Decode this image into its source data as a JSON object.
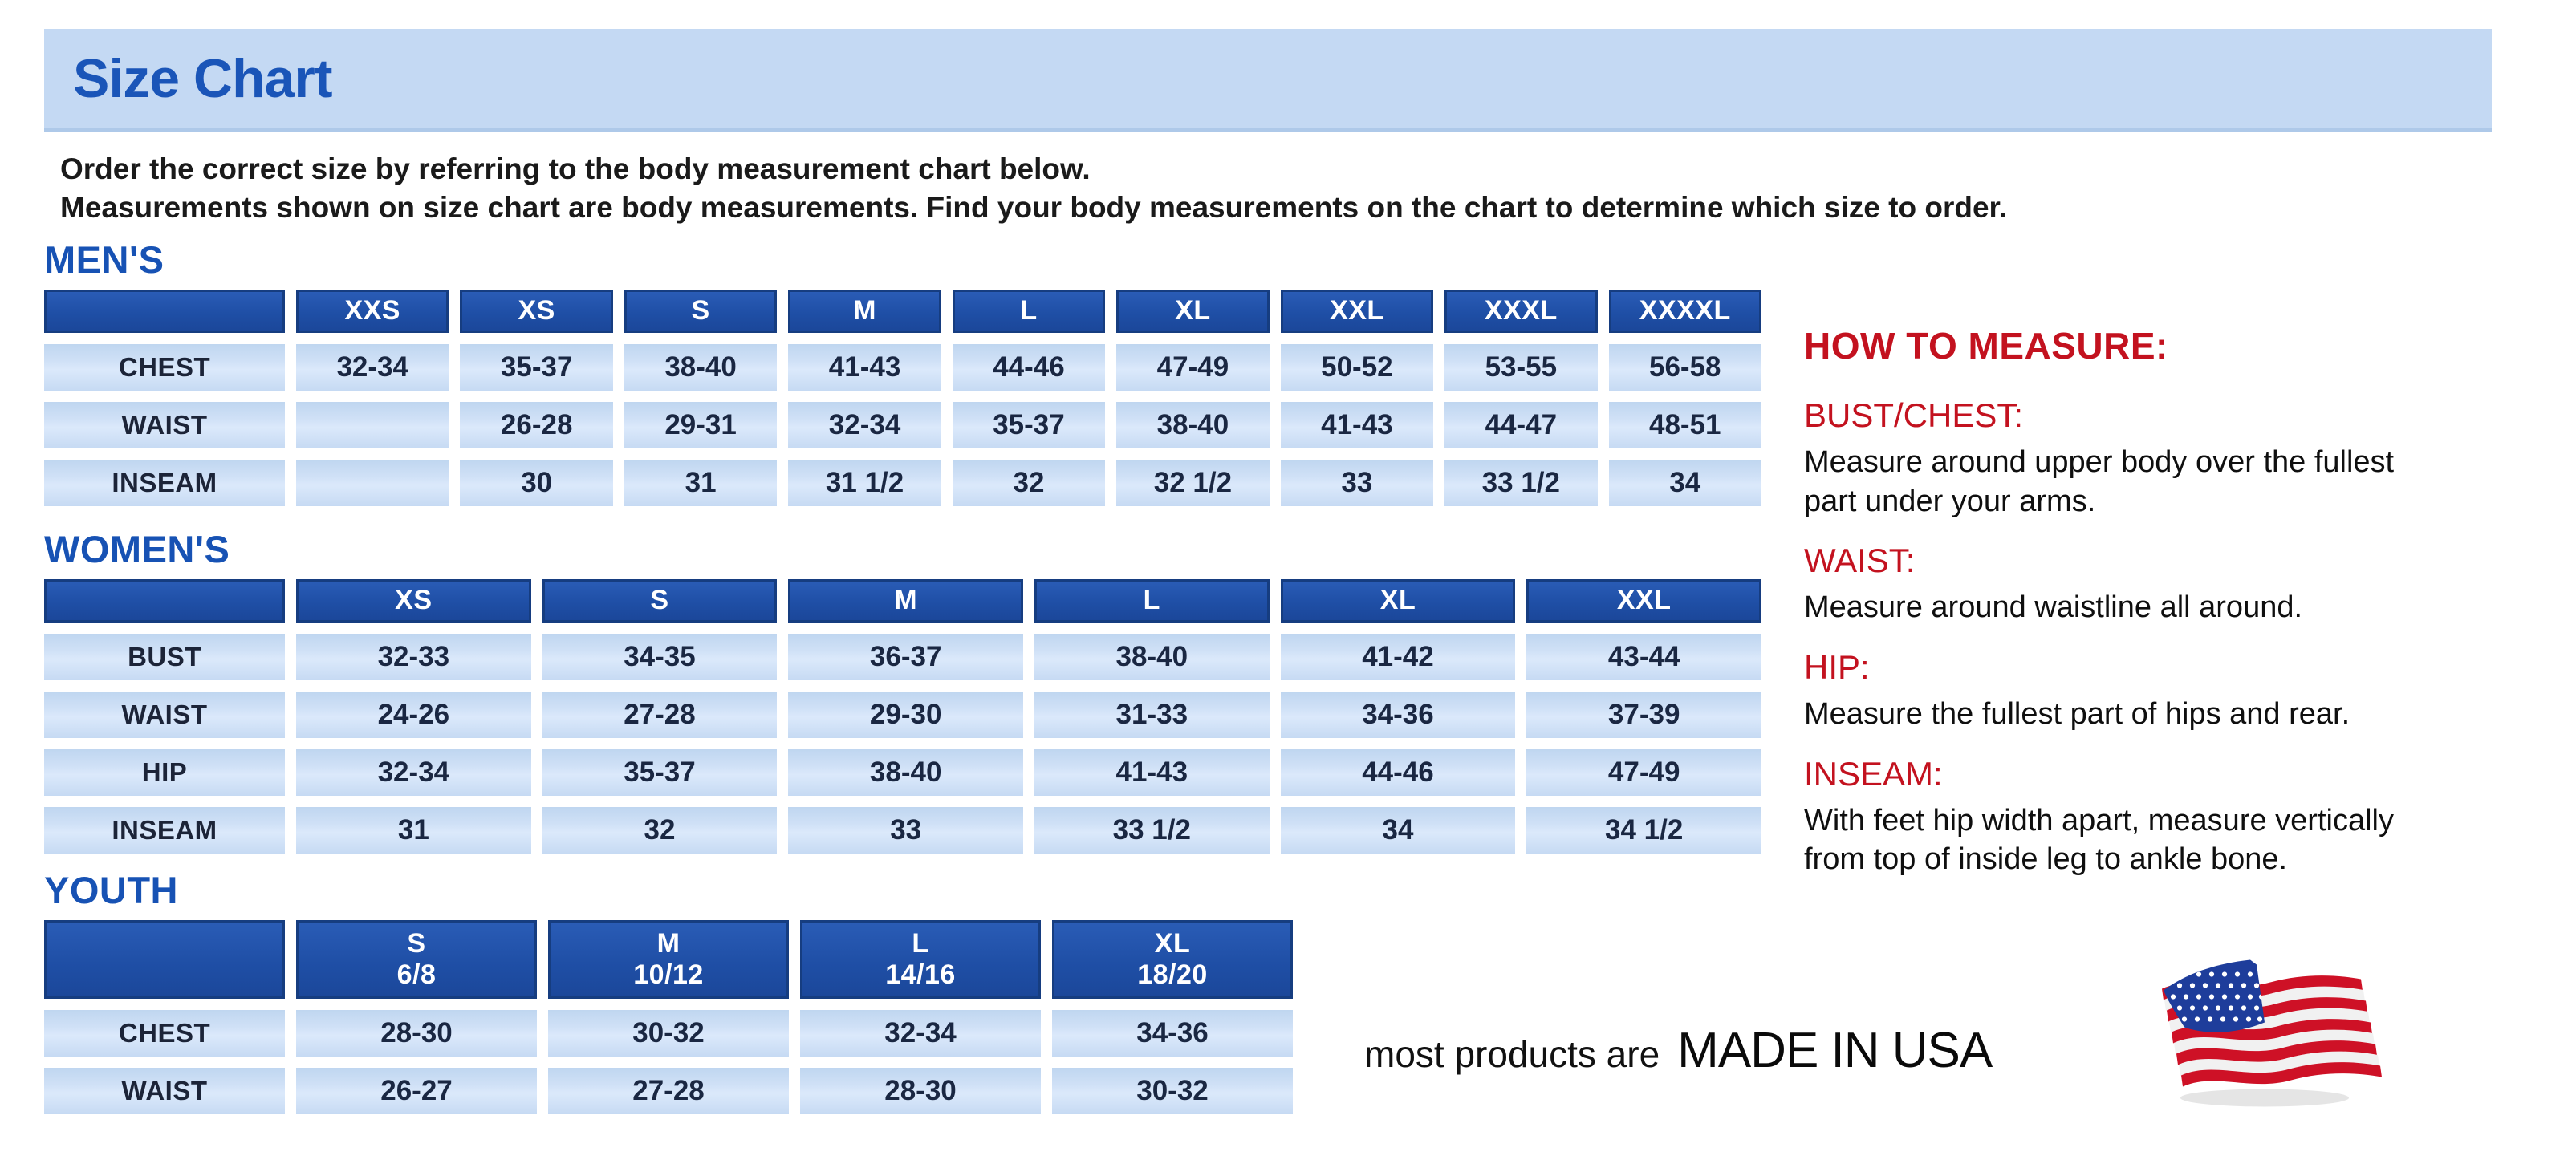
{
  "page": {
    "title": "Size Chart",
    "intro_line1": "Order the correct size by referring to the body measurement chart below.",
    "intro_line2": "Measurements shown on size chart are body measurements.  Find your body measurements on the chart to determine which size to order."
  },
  "tables": {
    "mens": {
      "section_title": "MEN'S",
      "columns": [
        {
          "label": "XXS"
        },
        {
          "label": "XS"
        },
        {
          "label": "S"
        },
        {
          "label": "M"
        },
        {
          "label": "L"
        },
        {
          "label": "XL"
        },
        {
          "label": "XXL"
        },
        {
          "label": "XXXL"
        },
        {
          "label": "XXXXL"
        }
      ],
      "rows": [
        {
          "label": "CHEST",
          "values": [
            "32-34",
            "35-37",
            "38-40",
            "41-43",
            "44-46",
            "47-49",
            "50-52",
            "53-55",
            "56-58"
          ]
        },
        {
          "label": "WAIST",
          "values": [
            "",
            "26-28",
            "29-31",
            "32-34",
            "35-37",
            "38-40",
            "41-43",
            "44-47",
            "48-51"
          ]
        },
        {
          "label": "INSEAM",
          "values": [
            "",
            "30",
            "31",
            "31 1/2",
            "32",
            "32 1/2",
            "33",
            "33 1/2",
            "34"
          ]
        }
      ]
    },
    "womens": {
      "section_title": "WOMEN'S",
      "columns": [
        {
          "label": "XS"
        },
        {
          "label": "S"
        },
        {
          "label": "M"
        },
        {
          "label": "L"
        },
        {
          "label": "XL"
        },
        {
          "label": "XXL"
        }
      ],
      "rows": [
        {
          "label": "BUST",
          "values": [
            "32-33",
            "34-35",
            "36-37",
            "38-40",
            "41-42",
            "43-44"
          ]
        },
        {
          "label": "WAIST",
          "values": [
            "24-26",
            "27-28",
            "29-30",
            "31-33",
            "34-36",
            "37-39"
          ]
        },
        {
          "label": "HIP",
          "values": [
            "32-34",
            "35-37",
            "38-40",
            "41-43",
            "44-46",
            "47-49"
          ]
        },
        {
          "label": "INSEAM",
          "values": [
            "31",
            "32",
            "33",
            "33 1/2",
            "34",
            "34 1/2"
          ]
        }
      ]
    },
    "youth": {
      "section_title": "YOUTH",
      "columns": [
        {
          "label": "S",
          "sub": "6/8"
        },
        {
          "label": "M",
          "sub": "10/12"
        },
        {
          "label": "L",
          "sub": "14/16"
        },
        {
          "label": "XL",
          "sub": "18/20"
        }
      ],
      "rows": [
        {
          "label": "CHEST",
          "values": [
            "28-30",
            "30-32",
            "32-34",
            "34-36"
          ]
        },
        {
          "label": "WAIST",
          "values": [
            "26-27",
            "27-28",
            "28-30",
            "30-32"
          ]
        }
      ]
    }
  },
  "how_to_measure": {
    "title": "HOW TO MEASURE:",
    "sections": [
      {
        "heading": "BUST/CHEST:",
        "text": "Measure around upper body over the fullest part under your arms."
      },
      {
        "heading": "WAIST:",
        "text": "Measure around waistline all around."
      },
      {
        "heading": "HIP:",
        "text": "Measure the fullest part of hips and rear."
      },
      {
        "heading": "INSEAM:",
        "text": "With feet hip width apart, measure vertically from top of inside leg to ankle bone."
      }
    ]
  },
  "footer": {
    "made_in_usa_prefix": "most products are",
    "made_in_usa": "MADE IN USA",
    "flag_icon": "us-flag-icon"
  },
  "colors": {
    "header_blue": "#1f4fa6",
    "header_blue_border": "#163d80",
    "cell_light_blue": "#c9dcf4",
    "title_bar_blue": "#c4d9f3",
    "heading_blue": "#1752b4",
    "accent_red": "#c3121f",
    "table_text_navy": "#1a2742",
    "flag_red": "#ce1126",
    "flag_blue": "#1e3d9b"
  }
}
